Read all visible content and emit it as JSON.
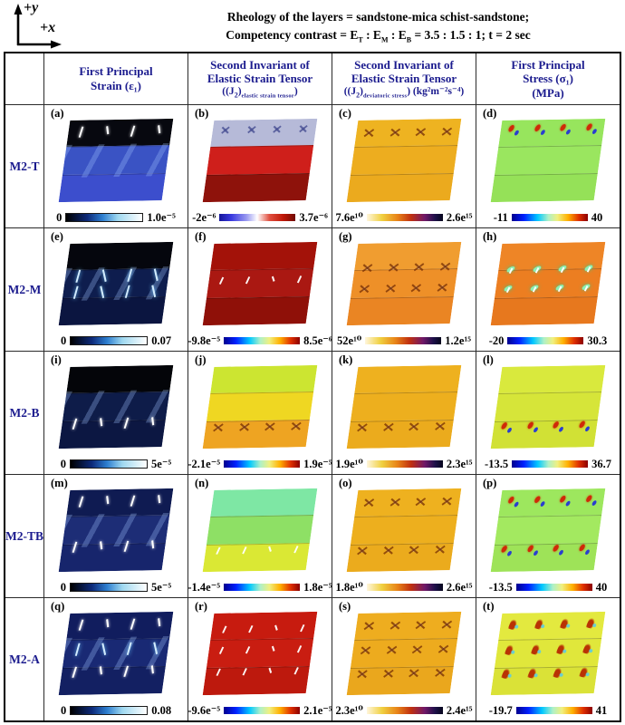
{
  "axes": {
    "y_label": "+y",
    "x_label": "+x"
  },
  "title": {
    "line1": "Rheology of the layers = sandstone-mica schist-sandstone;",
    "line2": {
      "pre": "Competency contrast = E",
      "sub_t": "T",
      "mid1": " : E",
      "sub_m": "M",
      "mid2": " : E",
      "sub_b": "B",
      "post": " = 3.5 : 1.5 : 1; t = 2 sec"
    }
  },
  "colors": {
    "header_text": "#1b1b8e",
    "row_label_text": "#1b1b8e",
    "table_border": "#000000",
    "background": "#ffffff"
  },
  "chart_data": {
    "type": "heatmap",
    "title": "Rheology of the layers = sandstone-mica schist-sandstone; Competency contrast = ET : EM : EB = 3.5 : 1.5 : 1; t = 2 sec",
    "grid": "5 model rows × 4 field columns; each panel is a sheared three-layer colormap with its own colorbar range",
    "columns": [
      {
        "lines": [
          "First Principal",
          "Strain (ε₁)"
        ],
        "formula": null
      },
      {
        "lines": [
          "Second Invariant of",
          "Elastic Strain Tensor"
        ],
        "formula": {
          "pre": "((J",
          "sub": "2",
          "mid": ")",
          "subtext": "elastic strain tensor",
          "post": ")"
        }
      },
      {
        "lines": [
          "Second Invariant of",
          "Elastic Strain Tensor"
        ],
        "formula": {
          "pre": "((J",
          "sub": "2",
          "mid": ")",
          "subtext": "deviatoric stress",
          "post": ") (kg²m⁻²s⁻⁴)"
        }
      },
      {
        "lines": [
          "First Principal",
          "Stress (σ₁)",
          "(MPa)"
        ],
        "formula": null
      }
    ],
    "rows": [
      "M2-T",
      "M2-M",
      "M2-B",
      "M2-TB",
      "M2-A"
    ],
    "panels": [
      {
        "letter": "(a)",
        "row": "M2-T",
        "column": "First Principal Strain",
        "cbar": "strain",
        "min": "0",
        "max": "1.0e⁻⁵",
        "bands": [
          "#07080f",
          "#3a53c4",
          "#3c4ecd"
        ],
        "streaks": true,
        "marks": [
          {
            "pos": 14,
            "type": "crack-w"
          }
        ]
      },
      {
        "letter": "(b)",
        "row": "M2-T",
        "column": "J2 elastic strain tensor",
        "cbar": "bwr",
        "min": "-2e⁻⁶",
        "max": "3.7e⁻⁶",
        "bands": [
          "#b6bad8",
          "#cf1f1b",
          "#8e120b"
        ],
        "streaks": false,
        "marks": [
          {
            "pos": 12,
            "type": "x-cool"
          }
        ]
      },
      {
        "letter": "(c)",
        "row": "M2-T",
        "column": "J2 deviatoric stress",
        "cbar": "cmr",
        "min": "7.6e¹⁰",
        "max": "2.6e¹⁵",
        "bands": [
          "#eeb321",
          "#edad1f",
          "#ebaa1e"
        ],
        "streaks": false,
        "marks": [
          {
            "pos": 16,
            "type": "x-hot"
          }
        ]
      },
      {
        "letter": "(d)",
        "row": "M2-T",
        "column": "First Principal Stress",
        "cbar": "jet",
        "min": "-11",
        "max": "40",
        "bands": [
          "#97e55d",
          "#9ae65f",
          "#95e158"
        ],
        "streaks": false,
        "marks": [
          {
            "pos": 12,
            "type": "butterfly"
          }
        ]
      },
      {
        "letter": "(e)",
        "row": "M2-M",
        "column": "First Principal Strain",
        "cbar": "strain",
        "min": "0",
        "max": "0.07",
        "bands": [
          "#05060d",
          "#0e1d4e",
          "#0b1540"
        ],
        "streaks": true,
        "marks": [
          {
            "pos": 40,
            "type": "crack-c"
          },
          {
            "pos": 60,
            "type": "crack-c"
          }
        ]
      },
      {
        "letter": "(f)",
        "row": "M2-M",
        "column": "J2 elastic strain tensor",
        "cbar": "jet",
        "min": "-9.8e⁻⁵",
        "max": "8.5e⁻⁶",
        "bands": [
          "#a31209",
          "#aa1812",
          "#8f1008"
        ],
        "streaks": false,
        "marks": [
          {
            "pos": 46,
            "type": "tick-w"
          }
        ]
      },
      {
        "letter": "(g)",
        "row": "M2-M",
        "column": "J2 deviatoric stress",
        "cbar": "cmr",
        "min": "52e¹⁰",
        "max": "1.2e¹⁵",
        "bands": [
          "#f09d30",
          "#ee9028",
          "#ea8523"
        ],
        "streaks": false,
        "marks": [
          {
            "pos": 30,
            "type": "x-hot"
          },
          {
            "pos": 56,
            "type": "x-hot"
          }
        ]
      },
      {
        "letter": "(h)",
        "row": "M2-M",
        "column": "First Principal Stress",
        "cbar": "jet",
        "min": "-20",
        "max": "30.3",
        "bands": [
          "#ee8526",
          "#ec7e21",
          "#e7781e"
        ],
        "streaks": false,
        "marks": [
          {
            "pos": 32,
            "type": "spot-g"
          },
          {
            "pos": 56,
            "type": "spot-g"
          }
        ]
      },
      {
        "letter": "(i)",
        "row": "M2-B",
        "column": "First Principal Strain",
        "cbar": "strain",
        "min": "0",
        "max": "5e⁻⁵",
        "bands": [
          "#040509",
          "#0e1c49",
          "#0c1742"
        ],
        "streaks": true,
        "marks": [
          {
            "pos": 70,
            "type": "crack-w"
          }
        ]
      },
      {
        "letter": "(j)",
        "row": "M2-B",
        "column": "J2 elastic strain tensor",
        "cbar": "jet",
        "min": "-2.1e⁻⁵",
        "max": "1.9e⁻⁵",
        "bands": [
          "#cce531",
          "#efd722",
          "#eea422"
        ],
        "streaks": false,
        "marks": [
          {
            "pos": 74,
            "type": "x-hot"
          }
        ]
      },
      {
        "letter": "(k)",
        "row": "M2-B",
        "column": "J2 deviatoric stress",
        "cbar": "cmr",
        "min": "1.9e¹⁰",
        "max": "2.3e¹⁵",
        "bands": [
          "#eeb11f",
          "#edaf1e",
          "#ebab1d"
        ],
        "streaks": false,
        "marks": [
          {
            "pos": 74,
            "type": "x-hot"
          }
        ]
      },
      {
        "letter": "(l)",
        "row": "M2-B",
        "column": "First Principal Stress",
        "cbar": "jet",
        "min": "-13.5",
        "max": "36.7",
        "bands": [
          "#d9e93d",
          "#d6e539",
          "#d1e135"
        ],
        "streaks": false,
        "marks": [
          {
            "pos": 74,
            "type": "butterfly"
          }
        ]
      },
      {
        "letter": "(m)",
        "row": "M2-TB",
        "column": "First Principal Strain",
        "cbar": "strain",
        "min": "0",
        "max": "5e⁻⁵",
        "bands": [
          "#0f1b52",
          "#1d2d76",
          "#17256c"
        ],
        "streaks": true,
        "marks": [
          {
            "pos": 14,
            "type": "crack-w"
          },
          {
            "pos": 70,
            "type": "crack-w"
          }
        ]
      },
      {
        "letter": "(n)",
        "row": "M2-TB",
        "column": "J2 elastic strain tensor",
        "cbar": "jet",
        "min": "-1.4e⁻⁵",
        "max": "1.8e⁻⁵",
        "bands": [
          "#7ee7a4",
          "#8ee065",
          "#dae834"
        ],
        "streaks": false,
        "marks": [
          {
            "pos": 74,
            "type": "tick-w"
          }
        ]
      },
      {
        "letter": "(o)",
        "row": "M2-TB",
        "column": "J2 deviatoric stress",
        "cbar": "cmr",
        "min": "1.8e¹⁰",
        "max": "2.6e¹⁵",
        "bands": [
          "#eeb11f",
          "#edaf1e",
          "#ebab1d"
        ],
        "streaks": false,
        "marks": [
          {
            "pos": 16,
            "type": "x-hot"
          },
          {
            "pos": 74,
            "type": "x-hot"
          }
        ]
      },
      {
        "letter": "(p)",
        "row": "M2-TB",
        "column": "First Principal Stress",
        "cbar": "jet",
        "min": "-13.5",
        "max": "40",
        "bands": [
          "#9de75e",
          "#a3e960",
          "#9ee358"
        ],
        "streaks": false,
        "marks": [
          {
            "pos": 14,
            "type": "butterfly"
          },
          {
            "pos": 74,
            "type": "butterfly"
          }
        ]
      },
      {
        "letter": "(q)",
        "row": "M2-A",
        "column": "First Principal Strain",
        "cbar": "strain",
        "min": "0",
        "max": "0.08",
        "bands": [
          "#111d5e",
          "#192974",
          "#132062"
        ],
        "streaks": true,
        "marks": [
          {
            "pos": 14,
            "type": "crack-w"
          },
          {
            "pos": 44,
            "type": "crack-c"
          },
          {
            "pos": 72,
            "type": "crack-w"
          }
        ]
      },
      {
        "letter": "(r)",
        "row": "M2-A",
        "column": "J2 elastic strain tensor",
        "cbar": "jet",
        "min": "-9.6e⁻⁵",
        "max": "2.1e⁻⁵",
        "bands": [
          "#c71b0f",
          "#c91d11",
          "#bd190d"
        ],
        "streaks": false,
        "marks": [
          {
            "pos": 20,
            "type": "tick-w"
          },
          {
            "pos": 46,
            "type": "tick-w"
          },
          {
            "pos": 72,
            "type": "tick-w"
          }
        ]
      },
      {
        "letter": "(s)",
        "row": "M2-A",
        "column": "J2 deviatoric stress",
        "cbar": "cmr",
        "min": "2.3e¹⁰",
        "max": "2.4e¹⁵",
        "bands": [
          "#eead1f",
          "#edab1e",
          "#eaa71d"
        ],
        "streaks": false,
        "marks": [
          {
            "pos": 16,
            "type": "x-hot"
          },
          {
            "pos": 46,
            "type": "x-hot"
          },
          {
            "pos": 74,
            "type": "x-hot"
          }
        ]
      },
      {
        "letter": "(t)",
        "row": "M2-A",
        "column": "First Principal Stress",
        "cbar": "jet",
        "min": "-19.7",
        "max": "41",
        "bands": [
          "#e3e93f",
          "#e0e73b",
          "#dae237"
        ],
        "streaks": false,
        "marks": [
          {
            "pos": 14,
            "type": "flame"
          },
          {
            "pos": 46,
            "type": "flame"
          },
          {
            "pos": 74,
            "type": "flame"
          }
        ]
      }
    ]
  }
}
